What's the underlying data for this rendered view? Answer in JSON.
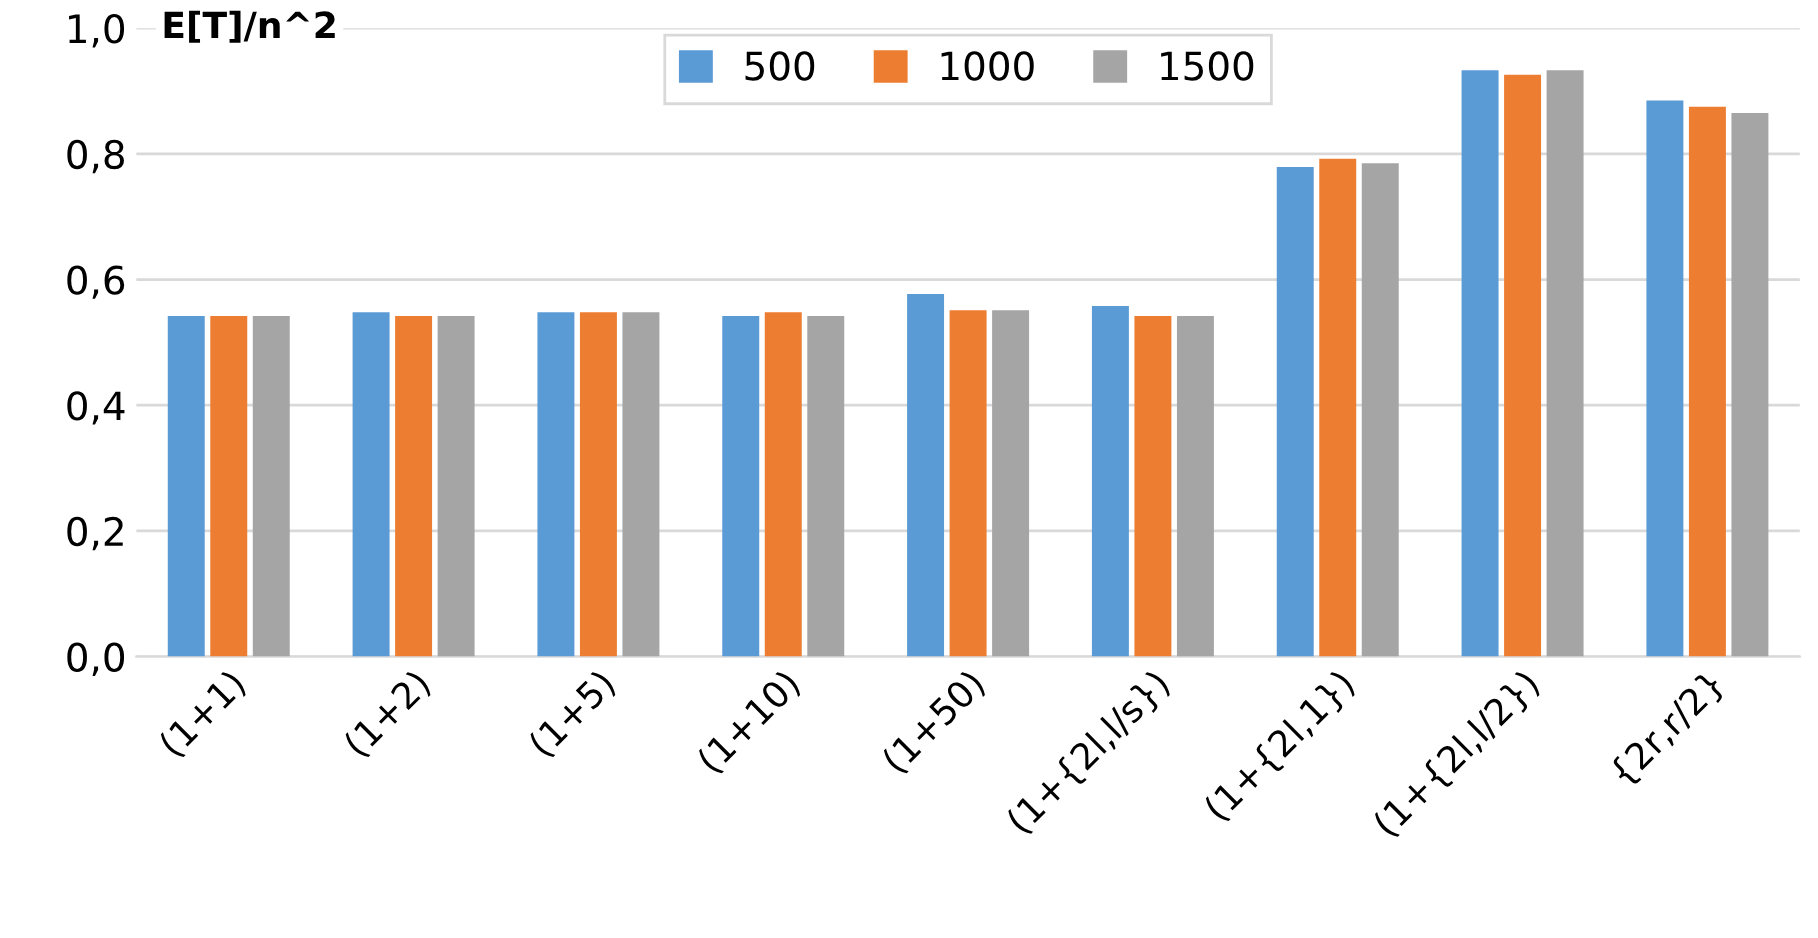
{
  "chart_data": {
    "type": "bar",
    "ylabel": "E[T]/n^2",
    "categories": [
      "(1+1)",
      "(1+2)",
      "(1+5)",
      "(1+10)",
      "(1+50)",
      "(1+{2l,l/s})",
      "(1+{2l,1})",
      "(1+{2l,l/2})",
      "{2r,r/2}"
    ],
    "series": [
      {
        "name": "500",
        "color": "#5b9bd5",
        "values": [
          0.542,
          0.548,
          0.548,
          0.542,
          0.577,
          0.558,
          0.779,
          0.933,
          0.885
        ]
      },
      {
        "name": "1000",
        "color": "#ed7d31",
        "values": [
          0.542,
          0.542,
          0.548,
          0.548,
          0.551,
          0.542,
          0.792,
          0.926,
          0.875
        ]
      },
      {
        "name": "1500",
        "color": "#a5a5a5",
        "values": [
          0.542,
          0.542,
          0.548,
          0.542,
          0.551,
          0.542,
          0.785,
          0.933,
          0.865
        ]
      }
    ],
    "ylim": [
      0,
      1
    ],
    "yticks": [
      {
        "value": 0,
        "label": "0,0"
      },
      {
        "value": 0.2,
        "label": "0,2"
      },
      {
        "value": 0.4,
        "label": "0,4"
      },
      {
        "value": 0.6,
        "label": "0,6"
      },
      {
        "value": 0.8,
        "label": "0,8"
      },
      {
        "value": 1,
        "label": "1,0"
      }
    ],
    "grid": "y",
    "legend": "top"
  }
}
